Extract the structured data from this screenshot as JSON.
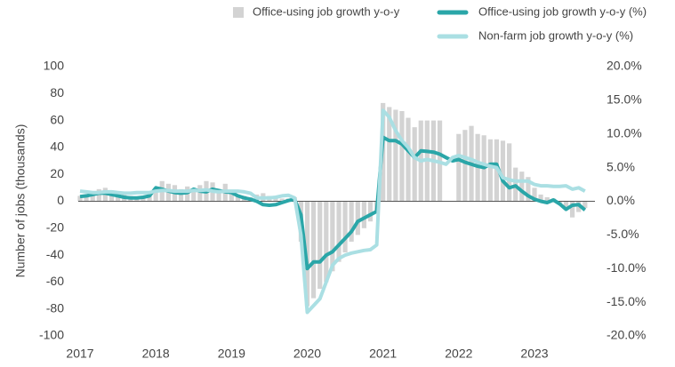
{
  "chart_data": {
    "type": "bar-line",
    "ylabel": "Number of jobs (thousands)",
    "xlim": [
      2017,
      2023.8
    ],
    "xticks": [
      2017,
      2018,
      2019,
      2020,
      2021,
      2022,
      2023
    ],
    "ylim": [
      -100,
      100
    ],
    "yticks": [
      -100,
      -80,
      -60,
      -40,
      -20,
      0,
      20,
      40,
      60,
      80,
      100
    ],
    "y2lim": [
      -20,
      20
    ],
    "y2ticks": [
      {
        "value": -20,
        "label": "-20.0%"
      },
      {
        "value": -15,
        "label": "-15.0%"
      },
      {
        "value": -10,
        "label": "-10.0%"
      },
      {
        "value": -5,
        "label": "-5.0%"
      },
      {
        "value": 0,
        "label": "0.0%"
      },
      {
        "value": 5,
        "label": "5.0%"
      },
      {
        "value": 10,
        "label": "10.0%"
      },
      {
        "value": 15,
        "label": "15.0%"
      },
      {
        "value": 20,
        "label": "20.0%"
      }
    ],
    "x": [
      2017,
      2017.083,
      2017.167,
      2017.25,
      2017.333,
      2017.417,
      2017.5,
      2017.583,
      2017.667,
      2017.75,
      2017.833,
      2017.917,
      2018,
      2018.083,
      2018.167,
      2018.25,
      2018.333,
      2018.417,
      2018.5,
      2018.583,
      2018.667,
      2018.75,
      2018.833,
      2018.917,
      2019,
      2019.083,
      2019.167,
      2019.25,
      2019.333,
      2019.417,
      2019.5,
      2019.583,
      2019.667,
      2019.75,
      2019.833,
      2019.917,
      2020,
      2020.083,
      2020.167,
      2020.25,
      2020.333,
      2020.417,
      2020.5,
      2020.583,
      2020.667,
      2020.75,
      2020.833,
      2020.917,
      2021,
      2021.083,
      2021.167,
      2021.25,
      2021.333,
      2021.417,
      2021.5,
      2021.583,
      2021.667,
      2021.75,
      2021.833,
      2021.917,
      2022,
      2022.083,
      2022.167,
      2022.25,
      2022.333,
      2022.417,
      2022.5,
      2022.583,
      2022.667,
      2022.75,
      2022.833,
      2022.917,
      2023,
      2023.083,
      2023.167,
      2023.25,
      2023.333,
      2023.417,
      2023.5,
      2023.583,
      2023.667
    ],
    "series": [
      {
        "name": "Office-using job growth y-o-y",
        "type": "bar",
        "color": "#d3d3d3",
        "values": [
          4,
          5,
          7,
          9,
          10,
          8,
          6,
          5,
          4,
          3,
          4,
          6,
          10,
          15,
          13,
          12,
          9,
          11,
          8,
          12,
          15,
          14,
          9,
          13,
          8,
          5,
          4,
          3,
          5,
          6,
          4,
          3,
          2,
          2,
          3,
          -30,
          -78,
          -72,
          -65,
          -60,
          -52,
          -45,
          -38,
          -30,
          -25,
          -20,
          -15,
          -8,
          73,
          70,
          68,
          67,
          62,
          55,
          60,
          60,
          60,
          60,
          null,
          null,
          50,
          53,
          56,
          50,
          49,
          46,
          46,
          45,
          43,
          25,
          22,
          18,
          10,
          5,
          3,
          2,
          -2,
          -5,
          -12,
          -8,
          -5
        ]
      },
      {
        "name": "Office-using job growth y-o-y (%)",
        "type": "line",
        "axis": "y2",
        "color": "#2aa6a8",
        "values": [
          0.7,
          0.8,
          1,
          1.2,
          1.2,
          1,
          0.8,
          0.6,
          0.5,
          0.5,
          0.6,
          0.8,
          2,
          1.8,
          1.5,
          1.3,
          1.2,
          1.3,
          1.8,
          1.5,
          1.4,
          1.8,
          1.6,
          1.4,
          1.3,
          0.8,
          0.5,
          0.3,
          0,
          -0.5,
          -0.6,
          -0.5,
          -0.2,
          0.1,
          0.3,
          -2,
          -10,
          -9,
          -9,
          -8,
          -7.5,
          -6.5,
          -5.5,
          -4.5,
          -3,
          -2.5,
          -2,
          -1.5,
          9.5,
          9,
          9,
          8.5,
          7.5,
          6.5,
          7.5,
          7.4,
          7.3,
          7,
          6.5,
          6,
          6.2,
          5.8,
          5.5,
          5.2,
          5,
          5.5,
          5.5,
          3,
          2,
          2.3,
          1.5,
          0.8,
          0.3,
          0,
          -0.2,
          0.2,
          -0.4,
          -1.2,
          -0.6,
          -0.5,
          -1.3
        ]
      },
      {
        "name": "Non-farm job growth y-o-y (%)",
        "type": "line",
        "axis": "y2",
        "color": "#aadfe3",
        "values": [
          1.5,
          1.4,
          1.3,
          1.3,
          1.4,
          1.4,
          1.3,
          1.2,
          1.2,
          1.3,
          1.3,
          1.3,
          1.5,
          1.6,
          1.6,
          1.5,
          1.5,
          1.5,
          1.6,
          1.6,
          1.7,
          1.5,
          1.4,
          1.5,
          1.5,
          1.5,
          1.4,
          1.2,
          0.5,
          0.5,
          0.5,
          0.6,
          0.8,
          0.9,
          0.5,
          -5,
          -16.5,
          -15.5,
          -14.5,
          -12,
          -9.5,
          -8.5,
          -8,
          -7.7,
          -7.5,
          -7.3,
          -7.2,
          -6.5,
          13.5,
          12.5,
          10.5,
          9,
          8,
          6.5,
          6,
          6.2,
          6,
          5.8,
          5.5,
          6.5,
          6.8,
          6.5,
          6.2,
          5.8,
          5.5,
          5.2,
          5,
          3.5,
          3.2,
          3,
          3,
          3,
          2.5,
          2.3,
          2.3,
          2.2,
          2.2,
          2.3,
          1.8,
          2,
          1.5
        ]
      }
    ]
  }
}
